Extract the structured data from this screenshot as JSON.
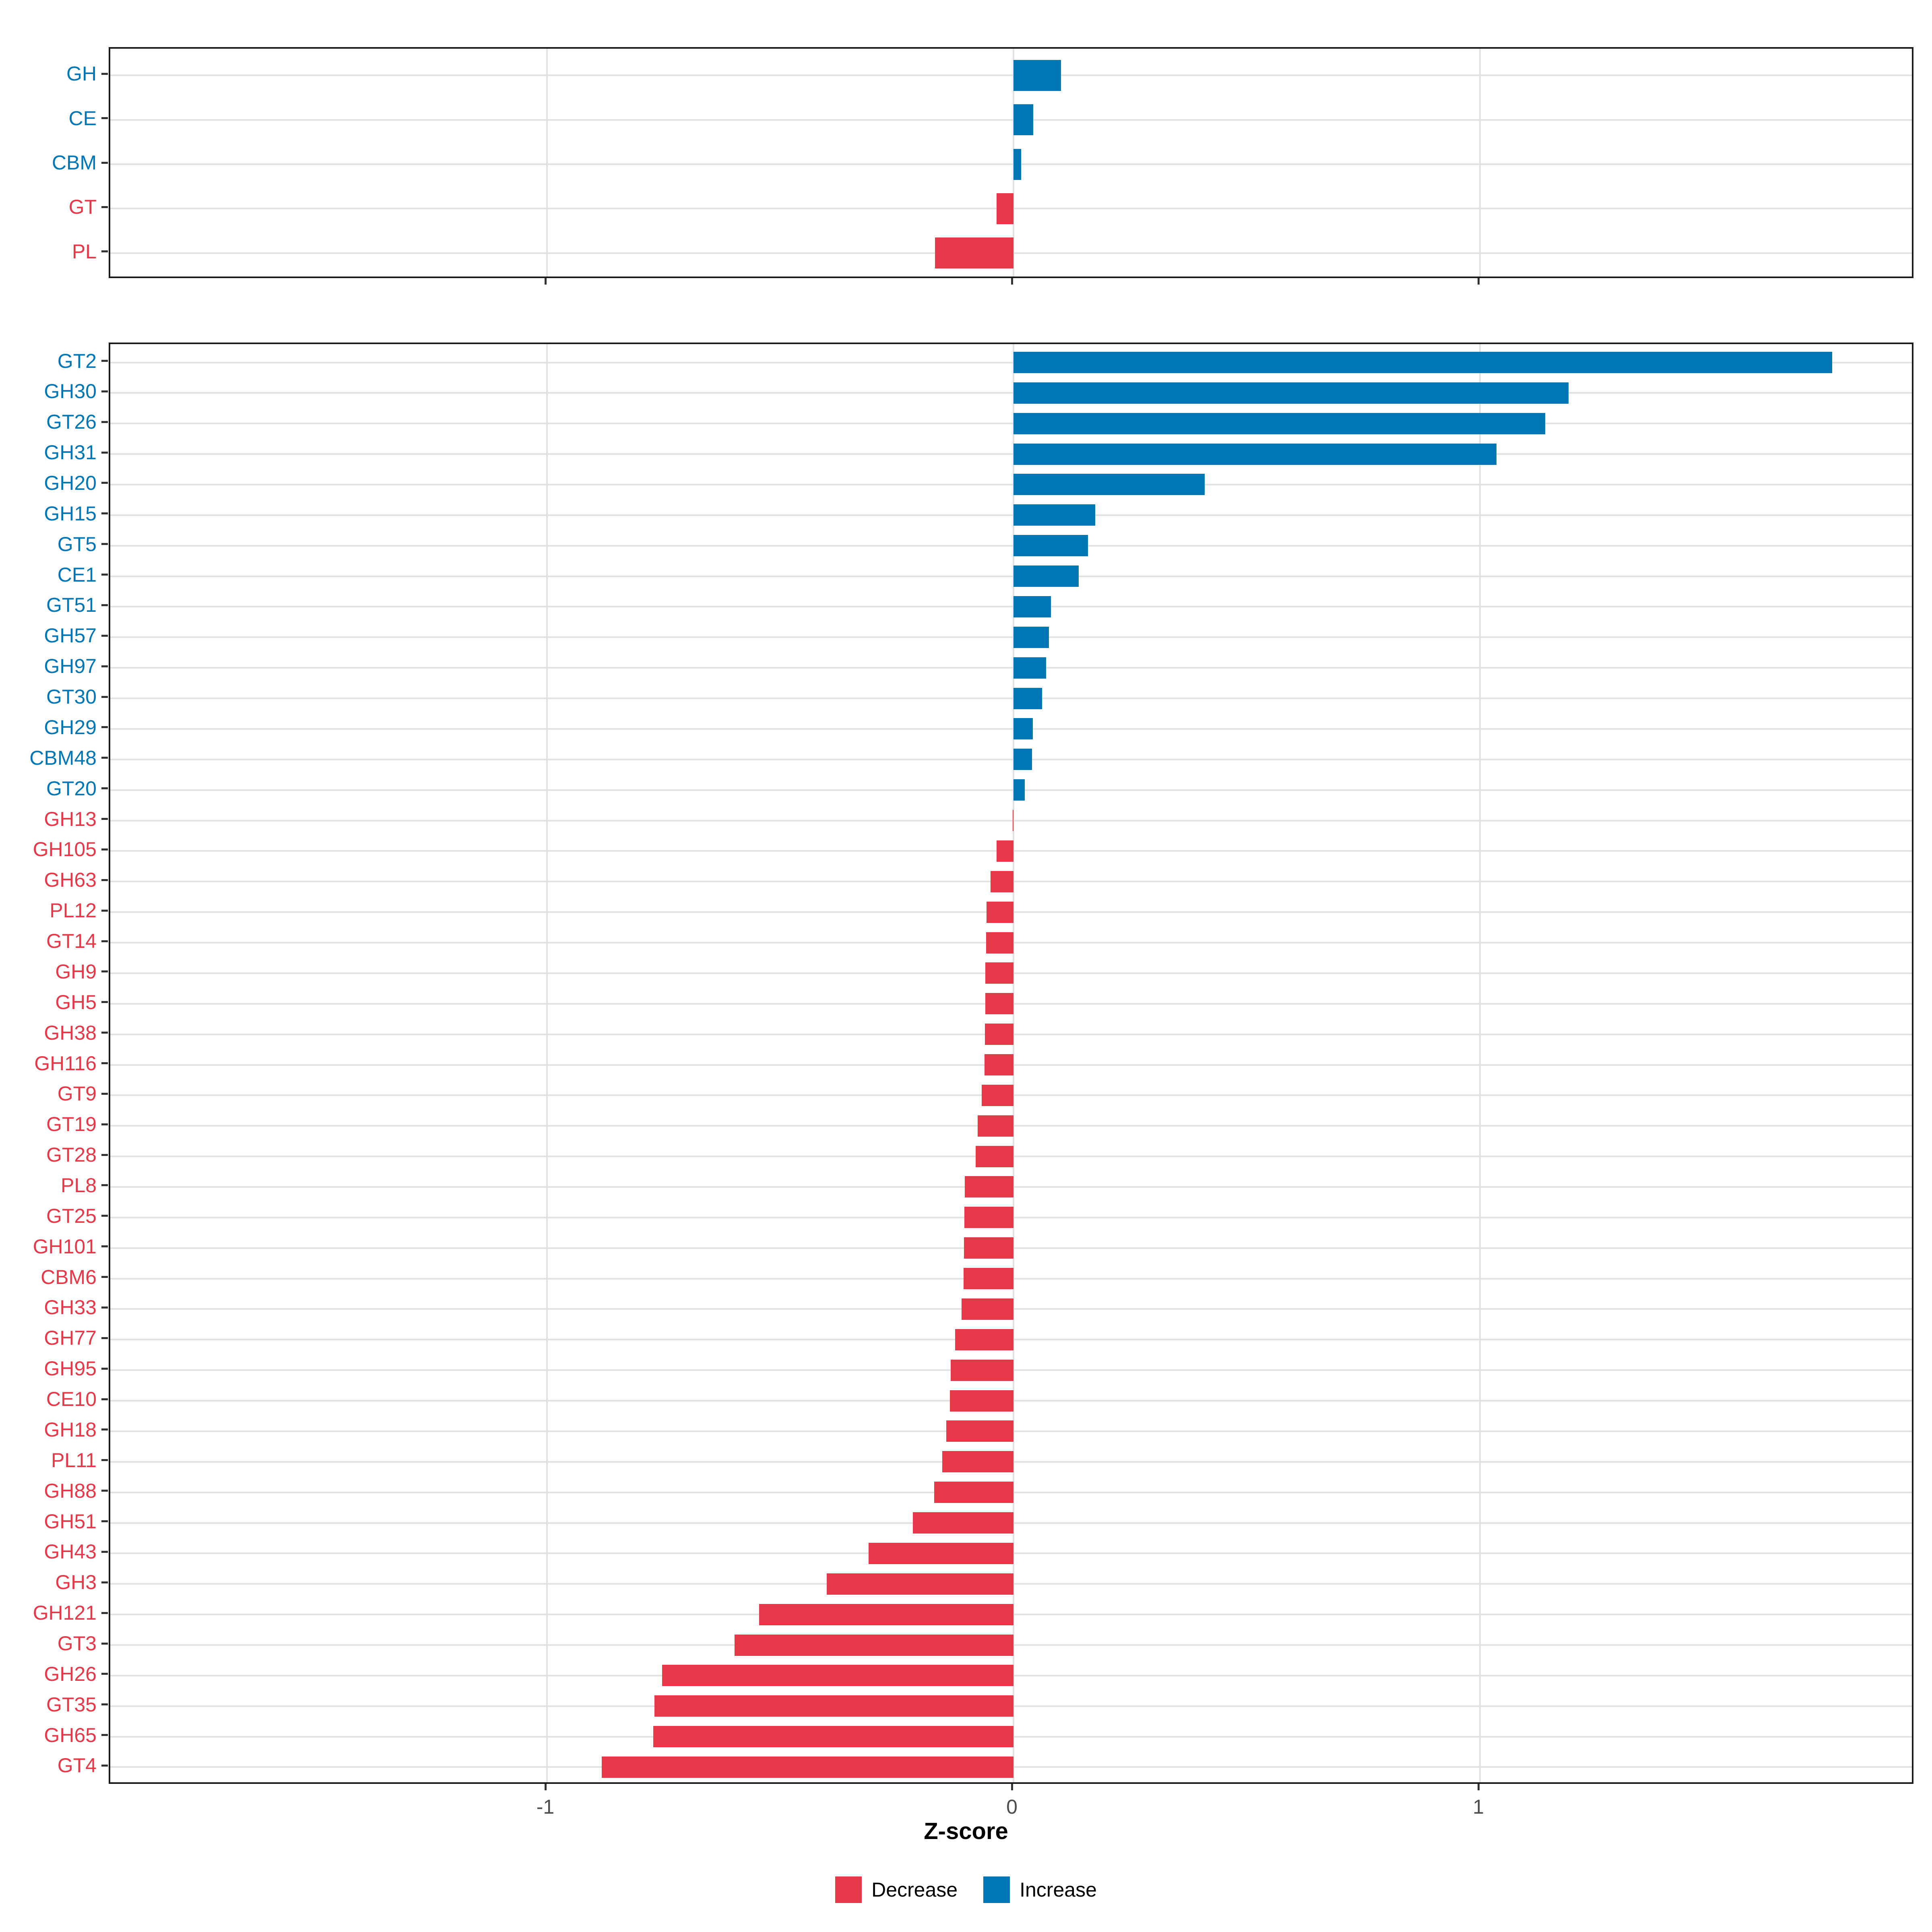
{
  "figure": {
    "background": "#ffffff"
  },
  "axis": {
    "xlabel": "Z-score",
    "x_tick_labels": [
      "-1",
      "0",
      "1"
    ],
    "x_tick_values": [
      -1,
      0,
      1
    ]
  },
  "legend": {
    "position": "bottom-center",
    "items": [
      {
        "label": "Decrease",
        "color": "#e5394a"
      },
      {
        "label": "Increase",
        "color": "#0076b5"
      }
    ]
  },
  "colors": {
    "increase": "#0076b5",
    "decrease": "#e5394a",
    "grid": "#e2e2e2",
    "panel_border": "#1a1a1a",
    "tick": "#333333",
    "tick_label": "#4d4d4d"
  },
  "chart_data": [
    {
      "type": "bar",
      "orientation": "horizontal",
      "panel": "enzyme-classes",
      "title": "",
      "xlabel": "",
      "ylabel": "",
      "grid": true,
      "xlim": [
        -1.94,
        1.94
      ],
      "x_ticks": [
        -1,
        0,
        1
      ],
      "categories": [
        "GH",
        "CE",
        "CBM",
        "GT",
        "PL"
      ],
      "values": [
        0.102,
        0.042,
        0.016,
        -0.036,
        -0.168
      ]
    },
    {
      "type": "bar",
      "orientation": "horizontal",
      "panel": "enzyme-families",
      "title": "",
      "xlabel": "Z-score",
      "ylabel": "",
      "grid": true,
      "xlim": [
        -1.94,
        1.94
      ],
      "x_ticks": [
        -1,
        0,
        1
      ],
      "categories": [
        "GT2",
        "GH30",
        "GT26",
        "GH31",
        "GH20",
        "GH15",
        "GT5",
        "CE1",
        "GT51",
        "GH57",
        "GH97",
        "GT30",
        "GH29",
        "CBM48",
        "GT20",
        "GH13",
        "GH105",
        "GH63",
        "PL12",
        "GT14",
        "GH9",
        "GH5",
        "GH38",
        "GH116",
        "GT9",
        "GT19",
        "GT28",
        "PL8",
        "GT25",
        "GH101",
        "CBM6",
        "GH33",
        "GH77",
        "GH95",
        "CE10",
        "GH18",
        "PL11",
        "GH88",
        "GH51",
        "GH43",
        "GH3",
        "GH121",
        "GT3",
        "GH26",
        "GT35",
        "GH65",
        "GT4"
      ],
      "values": [
        1.755,
        1.19,
        1.14,
        1.035,
        0.41,
        0.175,
        0.16,
        0.14,
        0.08,
        0.076,
        0.07,
        0.061,
        0.041,
        0.04,
        0.024,
        -0.002,
        -0.036,
        -0.049,
        -0.058,
        -0.059,
        -0.06,
        -0.06,
        -0.061,
        -0.062,
        -0.068,
        -0.077,
        -0.081,
        -0.104,
        -0.105,
        -0.106,
        -0.107,
        -0.111,
        -0.125,
        -0.135,
        -0.136,
        -0.144,
        -0.153,
        -0.17,
        -0.216,
        -0.311,
        -0.4,
        -0.545,
        -0.598,
        -0.753,
        -0.77,
        -0.772,
        -0.883
      ]
    }
  ]
}
